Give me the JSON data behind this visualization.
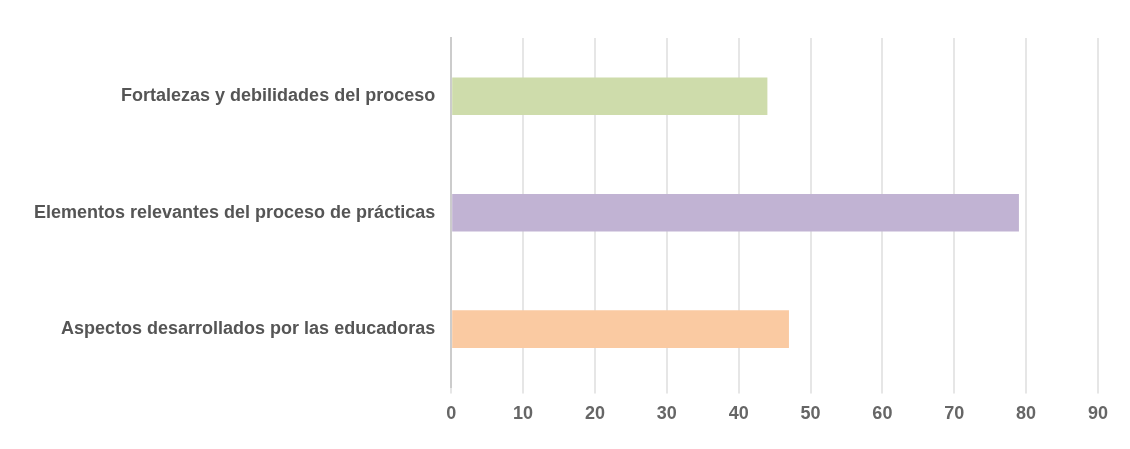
{
  "chart_data": {
    "type": "bar",
    "orientation": "horizontal",
    "categories": [
      "Fortalezas y debilidades del proceso",
      "Elementos relevantes del proceso de prácticas",
      "Aspectos desarrollados por las educadoras"
    ],
    "values": [
      44,
      79,
      47
    ],
    "colors": [
      "#cedcab",
      "#c1b3d3",
      "#facaa2"
    ],
    "xlim": [
      0,
      90
    ],
    "xticks": [
      0,
      10,
      20,
      30,
      40,
      50,
      60,
      70,
      80,
      90
    ],
    "grid": "x",
    "legend": false
  }
}
